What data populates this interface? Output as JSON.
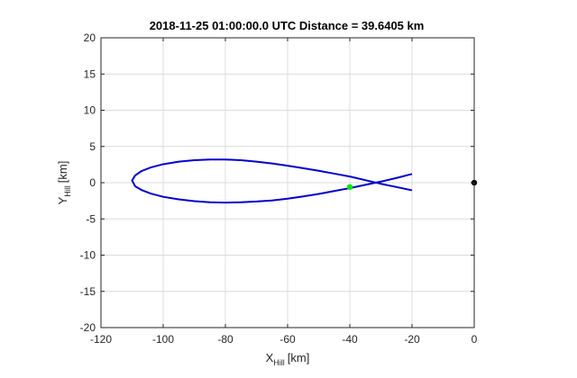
{
  "chart_data": {
    "type": "line",
    "title": "2018-11-25 01:00:00.0 UTC Distance = 39.6405 km",
    "xlabel": {
      "main": "X",
      "sub": "Hill",
      "unit": "[km]"
    },
    "ylabel": {
      "main": "Y",
      "sub": "Hill",
      "unit": "[km]"
    },
    "xlim": [
      -120,
      0
    ],
    "ylim": [
      -20,
      20
    ],
    "xticks": [
      -120,
      -100,
      -80,
      -60,
      -40,
      -20,
      0
    ],
    "yticks": [
      -20,
      -15,
      -10,
      -5,
      0,
      5,
      10,
      15,
      20
    ],
    "grid": true,
    "series": [
      {
        "color": "#0000cc",
        "x": [
          -20,
          -25,
          -30,
          -35,
          -40,
          -45,
          -50,
          -55,
          -60,
          -65,
          -70,
          -75,
          -80,
          -85,
          -90,
          -95,
          -100,
          -104,
          -107,
          -109,
          -110,
          -109,
          -107,
          -104,
          -100,
          -95,
          -90,
          -85,
          -80,
          -75,
          -70,
          -65,
          -60,
          -55,
          -50,
          -45,
          -40,
          -35,
          -30,
          -25,
          -20
        ],
        "y": [
          1.2,
          0.65,
          0.15,
          -0.3,
          -0.75,
          -1.15,
          -1.55,
          -1.9,
          -2.2,
          -2.45,
          -2.6,
          -2.7,
          -2.75,
          -2.7,
          -2.55,
          -2.3,
          -1.95,
          -1.5,
          -1.0,
          -0.5,
          0.3,
          1.0,
          1.6,
          2.1,
          2.55,
          2.9,
          3.1,
          3.2,
          3.2,
          3.1,
          2.9,
          2.65,
          2.35,
          2.0,
          1.65,
          1.25,
          0.85,
          0.35,
          -0.15,
          -0.6,
          -1.05
        ]
      }
    ],
    "markers": [
      {
        "name": "current-position",
        "x": -40,
        "y": -0.6,
        "color": "#00e600"
      },
      {
        "name": "target-origin",
        "x": 0,
        "y": 0,
        "color": "#000000"
      }
    ]
  }
}
